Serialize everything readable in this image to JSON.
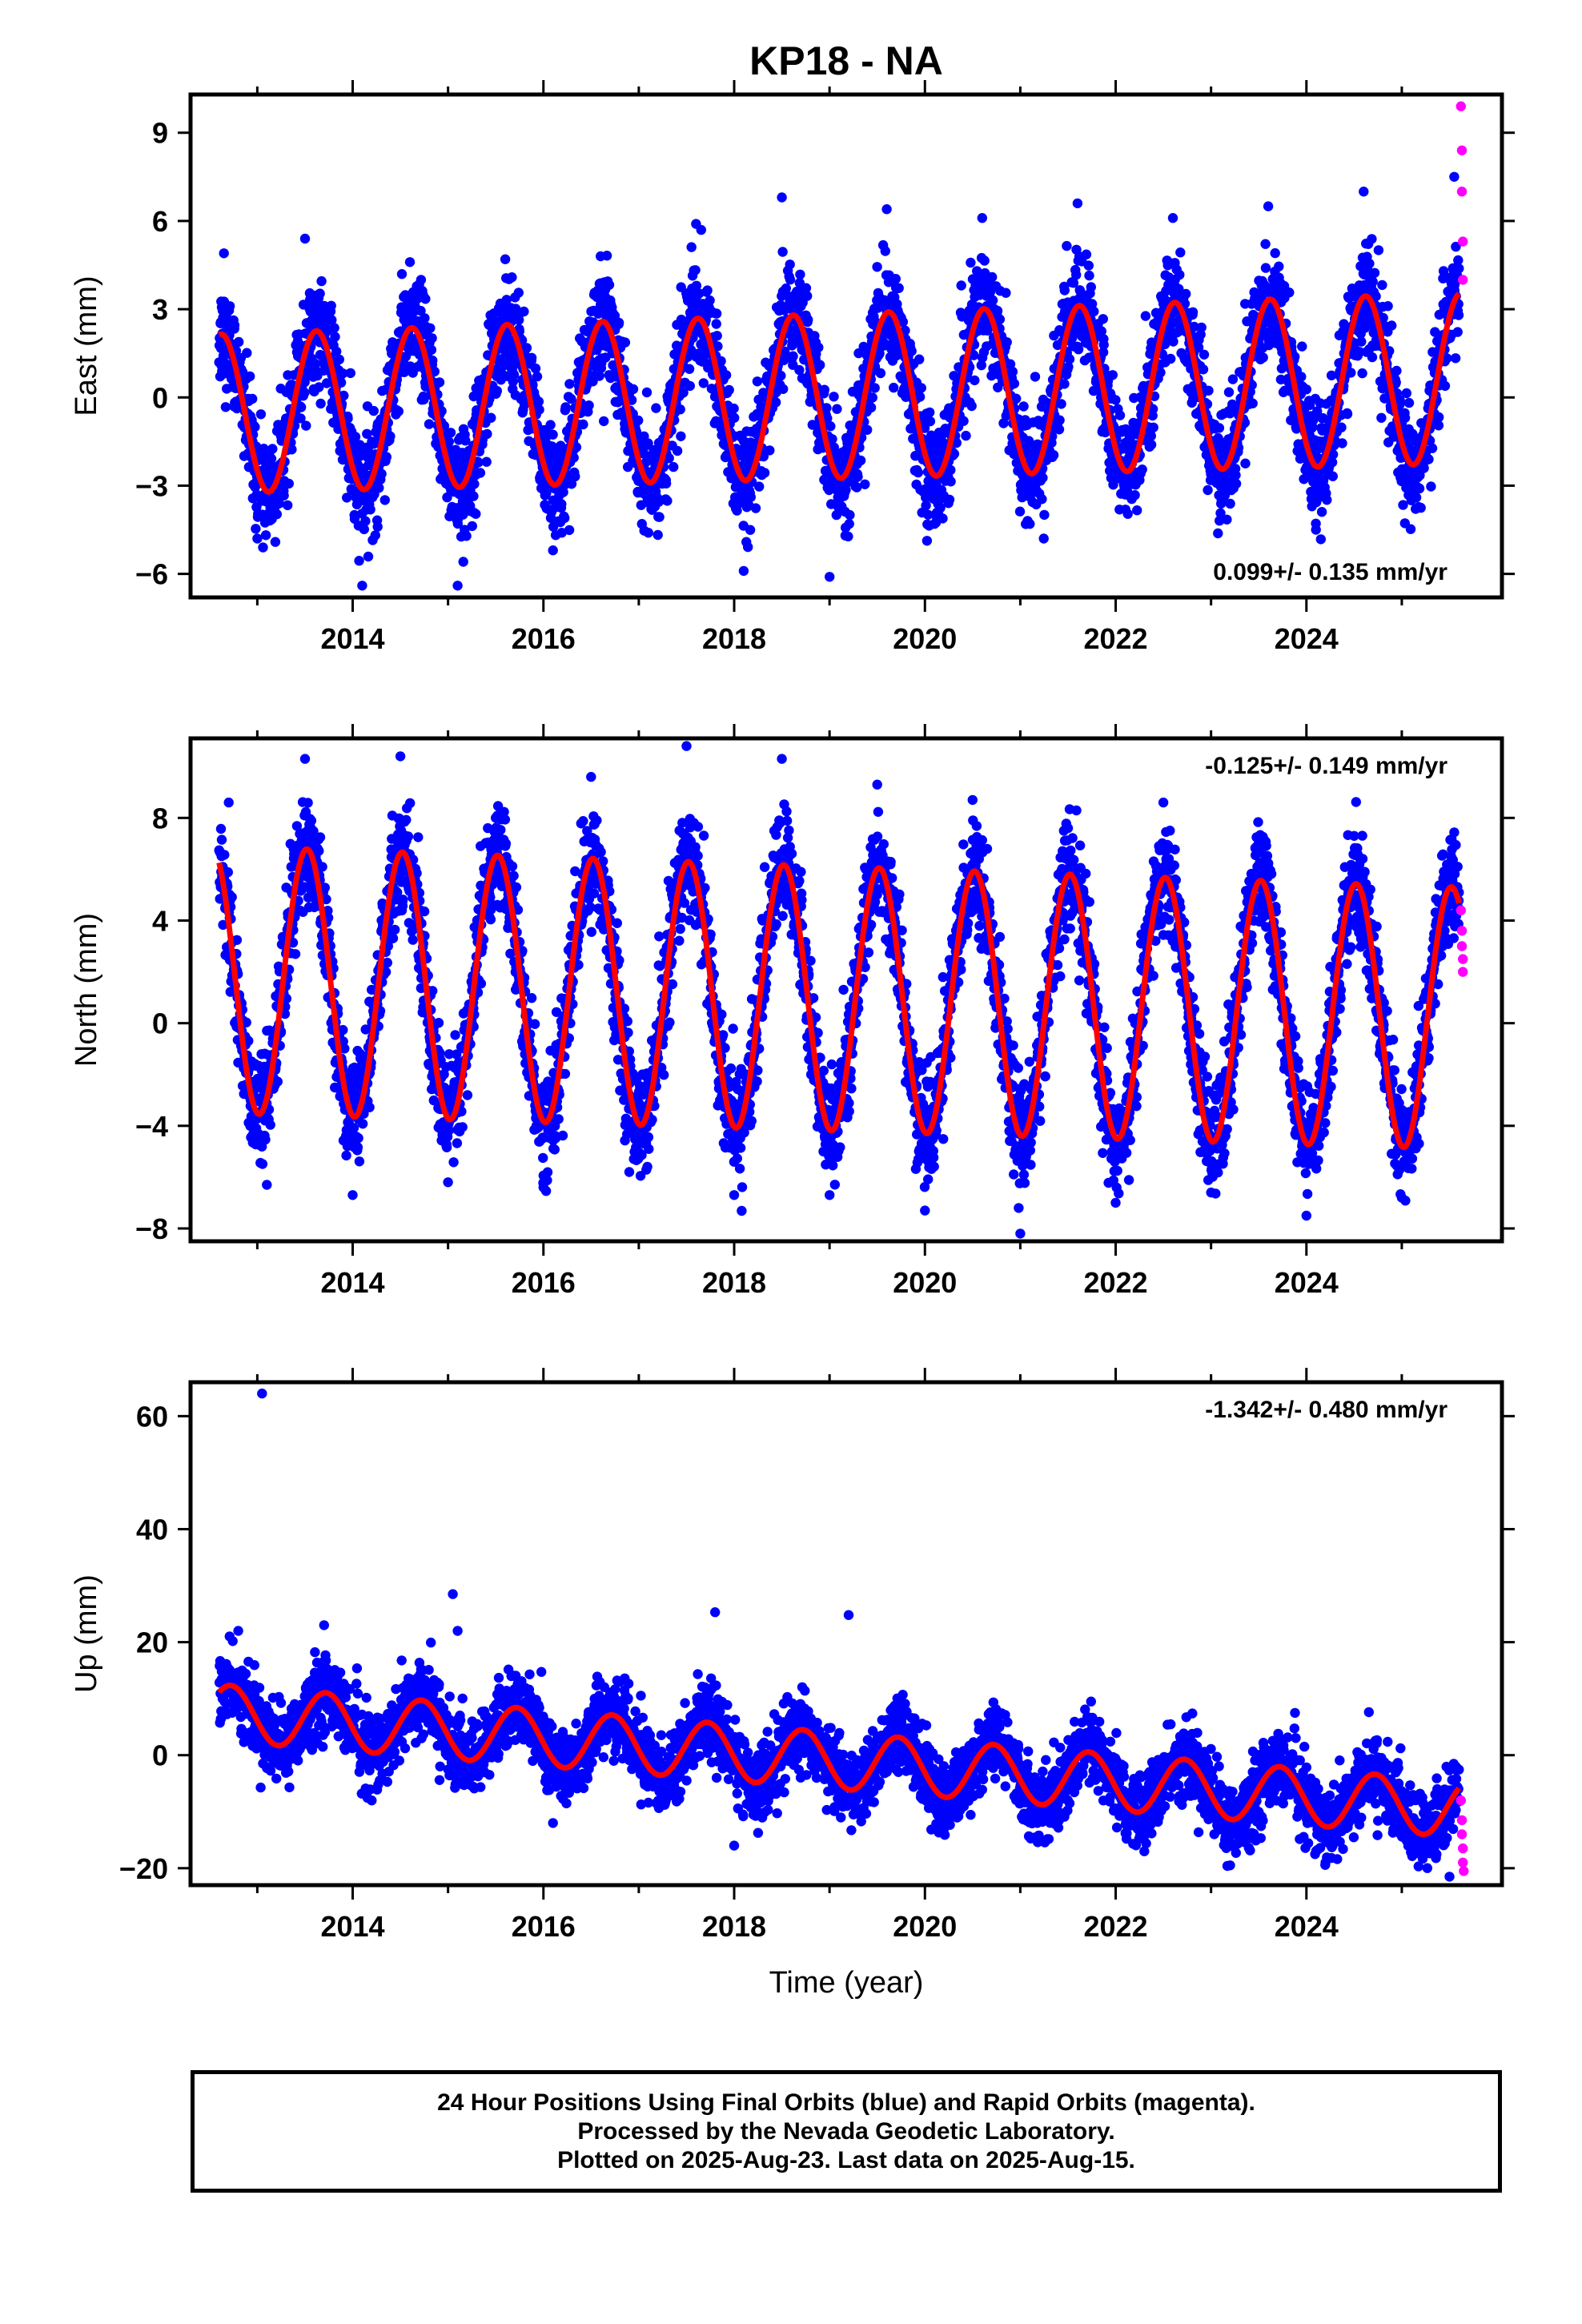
{
  "title": "KP18 - NA",
  "xlabel": "Time (year)",
  "colors": {
    "final": "#0000ff",
    "rapid": "#ff00ff",
    "model": "#ff0000"
  },
  "caption": [
    "24 Hour Positions Using Final Orbits (blue) and Rapid Orbits (magenta).",
    "Processed by the Nevada Geodetic Laboratory.",
    "Plotted on 2025-Aug-23. Last data on 2025-Aug-15."
  ],
  "chart_data": [
    {
      "type": "scatter",
      "ylabel": "East (mm)",
      "rate_text": "0.099+/- 0.135 mm/yr",
      "rate_position": "bottom-right",
      "xlim": [
        2012.3,
        2026.05
      ],
      "ylim": [
        -6.8,
        10.3
      ],
      "xticks": [
        2014,
        2016,
        2018,
        2020,
        2022,
        2024
      ],
      "yticks": [
        -6,
        -3,
        0,
        3,
        6,
        9
      ],
      "model": {
        "start": 2012.6,
        "end": 2025.6,
        "amplitude": 2.7,
        "amplitude_end": 2.9,
        "offset": 0.35,
        "offset_end": 1.55,
        "phase_peak": 0.62,
        "noise": 1.2
      },
      "series": [
        {
          "name": "Final Orbits (blue)",
          "x": [
            2012.65,
            2013.0,
            2013.5,
            2014.1,
            2014.6,
            2015.1,
            2015.6,
            2016.1,
            2016.6,
            2017.1,
            2017.6,
            2018.1,
            2018.5,
            2019.0,
            2019.6,
            2020.1,
            2020.6,
            2021.1,
            2021.6,
            2022.1,
            2022.6,
            2023.1,
            2023.6,
            2024.1,
            2024.6,
            2025.1,
            2025.55
          ],
          "y": [
            4.9,
            -4.8,
            5.4,
            -6.4,
            4.6,
            -6.4,
            4.7,
            -5.2,
            4.8,
            -4.6,
            5.9,
            -5.9,
            6.8,
            -6.1,
            6.4,
            -4.3,
            6.1,
            -4.3,
            6.6,
            -3.3,
            6.1,
            -2.9,
            6.5,
            -4.5,
            7.0,
            -3.5,
            7.5
          ]
        },
        {
          "name": "Rapid Orbits (magenta)",
          "x": [
            2025.62,
            2025.63,
            2025.63,
            2025.64,
            2025.64
          ],
          "y": [
            9.9,
            8.4,
            7.0,
            5.3,
            4.0
          ]
        }
      ]
    },
    {
      "type": "scatter",
      "ylabel": "North (mm)",
      "rate_text": "-0.125+/- 0.149 mm/yr",
      "rate_position": "top-right",
      "xlim": [
        2012.3,
        2026.05
      ],
      "ylim": [
        -8.5,
        11.1
      ],
      "xticks": [
        2014,
        2016,
        2018,
        2020,
        2022,
        2024
      ],
      "yticks": [
        -8,
        -4,
        0,
        4,
        8
      ],
      "model": {
        "start": 2012.6,
        "end": 2025.6,
        "amplitude": 5.2,
        "amplitude_end": 5.1,
        "offset": 2.0,
        "offset_end": 0.5,
        "phase_peak": 0.52,
        "noise": 1.4
      },
      "series": [
        {
          "name": "Final Orbits (blue)",
          "x": [
            2012.7,
            2013.1,
            2013.5,
            2014.0,
            2014.5,
            2015.0,
            2015.5,
            2016.0,
            2016.5,
            2016.9,
            2017.5,
            2018.0,
            2018.5,
            2019.0,
            2019.5,
            2020.0,
            2020.5,
            2021.0,
            2021.5,
            2022.0,
            2022.5,
            2023.0,
            2023.5,
            2024.0,
            2024.5,
            2025.0,
            2025.5
          ],
          "y": [
            8.6,
            -6.3,
            10.3,
            -6.7,
            10.4,
            -6.2,
            8.0,
            -6.4,
            9.6,
            -5.8,
            10.8,
            -6.7,
            10.3,
            -6.7,
            9.3,
            -7.3,
            8.7,
            -8.2,
            7.6,
            -7.0,
            8.6,
            -6.6,
            7.0,
            -7.5,
            7.3,
            -6.8,
            6.0
          ]
        },
        {
          "name": "Rapid Orbits (magenta)",
          "x": [
            2025.62,
            2025.63,
            2025.63,
            2025.64,
            2025.64
          ],
          "y": [
            4.4,
            3.6,
            3.0,
            2.5,
            2.0
          ]
        }
      ]
    },
    {
      "type": "scatter",
      "ylabel": "Up (mm)",
      "rate_text": "-1.342+/- 0.480 mm/yr",
      "rate_position": "top-right",
      "xlim": [
        2012.3,
        2026.05
      ],
      "ylim": [
        -23,
        66
      ],
      "xticks": [
        2014,
        2016,
        2018,
        2020,
        2022,
        2024
      ],
      "yticks": [
        -20,
        0,
        20,
        40,
        60
      ],
      "model": {
        "start": 2012.6,
        "end": 2025.6,
        "amplitude": 5.0,
        "amplitude_end": 5.0,
        "offset": 7.5,
        "offset_end": -9.5,
        "phase_peak": 0.72,
        "noise": 4.2
      },
      "series": [
        {
          "name": "Final Orbits (blue)",
          "x": [
            2013.05,
            2012.8,
            2013.7,
            2015.05,
            2015.1,
            2017.8,
            2019.2,
            2014.2,
            2016.1,
            2018.0,
            2020.2,
            2022.3,
            2023.2,
            2024.2,
            2025.5
          ],
          "y": [
            64.0,
            22.0,
            23.0,
            28.5,
            22.0,
            25.3,
            24.8,
            -8.0,
            -12.0,
            -16.0,
            -13.0,
            -17.0,
            -19.5,
            -19.0,
            -21.5
          ]
        },
        {
          "name": "Rapid Orbits (magenta)",
          "x": [
            2025.62,
            2025.63,
            2025.63,
            2025.64,
            2025.64,
            2025.65
          ],
          "y": [
            -8.0,
            -11.5,
            -14.0,
            -16.5,
            -19.0,
            -20.5
          ]
        }
      ]
    }
  ]
}
